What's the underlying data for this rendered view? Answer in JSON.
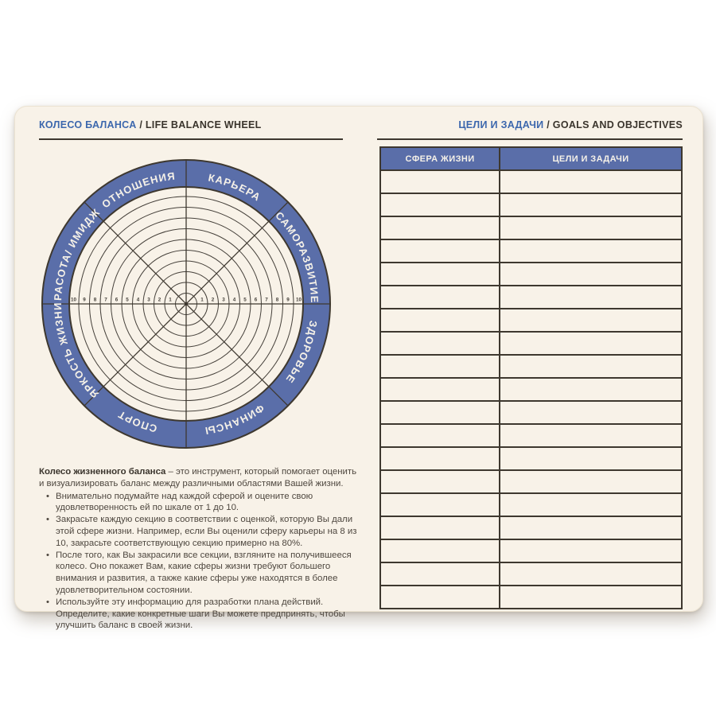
{
  "page": {
    "left_header": {
      "title_ru": "КОЛЕСО БАЛАНСА",
      "title_en": "/ LIFE BALANCE WHEEL"
    },
    "right_header": {
      "title_ru": "ЦЕЛИ И ЗАДАЧИ",
      "title_en": "/ GOALS AND OBJECTIVES"
    }
  },
  "wheel": {
    "type": "life-balance-wheel",
    "sectors": [
      "КАРЬЕРА",
      "САМОРАЗВИТИЕ",
      "ЗДОРОВЬЕ",
      "ФИНАНСЫ",
      "СПОРТ",
      "ЯРКОСТЬ ЖИЗНИ",
      "КРАСОТА/ ИМИДЖ",
      "ОТНОШЕНИЯ"
    ],
    "scale": [
      "1",
      "2",
      "3",
      "4",
      "5",
      "6",
      "7",
      "8",
      "9",
      "10"
    ],
    "scale_min": 1,
    "scale_max": 10,
    "rings": 10
  },
  "description": {
    "intro_bold": "Колесо жизненного баланса",
    "intro_text": "– это инструмент, который помогает оценить и визуализировать баланс между различными областями Вашей жизни.",
    "bullet_char": "•",
    "bullets": [
      "Внимательно подумайте над каждой сферой и оцените свою удовлетворенность ей по шкале от 1 до 10.",
      "Закрасьте каждую секцию в соответствии с оценкой, которую Вы дали этой сфере жизни. Например, если Вы оценили сферу карьеры на 8 из 10, закрасьте соответствующую секцию примерно на 80%.",
      "После того, как Вы закрасили все секции, взгляните на получившееся колесо. Оно покажет Вам, какие сферы жизни требуют большего внимания и развития, а также какие сферы уже находятся в более удовлетворительном состоянии.",
      "Используйте эту информацию для разработки плана действий. Определите, какие конкретные шаги Вы можете предпринять, чтобы улучшить баланс в своей жизни."
    ]
  },
  "table": {
    "headers": [
      "СФЕРА ЖИЗНИ",
      "ЦЕЛИ И ЗАДАЧИ"
    ],
    "row_count": 19
  },
  "colors": {
    "paper": "#f8f2e8",
    "accent_blue": "#5a6ea9",
    "title_blue": "#3c67ad",
    "ink": "#3e382f",
    "body_text": "#4e473f"
  }
}
